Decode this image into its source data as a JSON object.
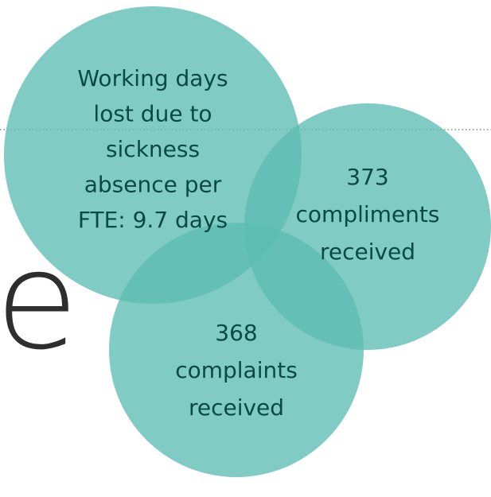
{
  "background_text": "e",
  "nodes": [
    {
      "lines": [
        "Working days",
        "lost due to",
        "sickness",
        "absence per",
        "FTE: 9.7 days"
      ]
    },
    {
      "lines": [
        "373",
        "compliments",
        "received"
      ]
    },
    {
      "lines": [
        "368",
        "complaints",
        "received"
      ]
    }
  ]
}
